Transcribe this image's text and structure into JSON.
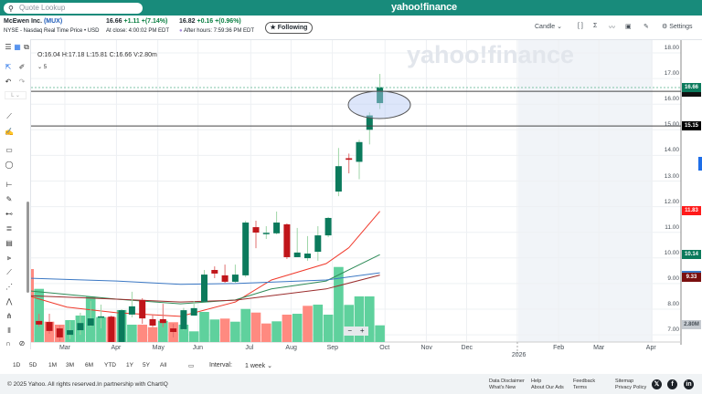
{
  "header": {
    "search_placeholder": "Quote Lookup",
    "logo": "yahoo!finance"
  },
  "quote": {
    "name": "McEwen Inc.",
    "symbol": "(MUX)",
    "exchange": "NYSE - Nasdaq Real Time Price • USD",
    "price": "16.66",
    "change": "+1.11",
    "change_pct": "+(7.14%)",
    "close_label": "At close: 4:00:02 PM EDT",
    "ah_price": "16.82",
    "ah_change": "+0.16",
    "ah_change_pct": "+(0.96%)",
    "ah_label": "After hours: 7:59:36 PM EDT",
    "following": "★ Following"
  },
  "toolbar": {
    "chart_type": "Candle ⌄",
    "settings": "Settings"
  },
  "ohlc": "O:16.04  H:17.18  L:15.81  C:16.66  V:2.80m",
  "study_count": "⌄ 5",
  "watermark": "yahoo!finance",
  "colors": {
    "up": "#0b7a5c",
    "down": "#c0151a",
    "vol_up": "#5fd19d",
    "vol_down": "#ff8a80",
    "header": "#188b7b"
  },
  "chart_data": {
    "type": "candlestick",
    "ylim": [
      7,
      18
    ],
    "yticks": [
      "18.00",
      "17.00",
      "16.00",
      "15.00",
      "14.00",
      "13.00",
      "12.00",
      "11.00",
      "10.00",
      "9.00",
      "8.00",
      "7.00"
    ],
    "xlabels": [
      {
        "t": "Mar",
        "i": 2.5
      },
      {
        "t": "Apr",
        "i": 7.5
      },
      {
        "t": "May",
        "i": 11.5
      },
      {
        "t": "Jun",
        "i": 15.4
      },
      {
        "t": "Jul",
        "i": 20.5
      },
      {
        "t": "Aug",
        "i": 24.4
      },
      {
        "t": "Sep",
        "i": 28.4
      },
      {
        "t": "Oct",
        "i": 33.5
      },
      {
        "t": "Nov",
        "i": 37.5
      },
      {
        "t": "Dec",
        "i": 41.4
      },
      {
        "t": "2026",
        "i": 46.3
      },
      {
        "t": "Feb",
        "i": 50.3
      },
      {
        "t": "Mar",
        "i": 54.2
      },
      {
        "t": "Apr",
        "i": 59.3
      }
    ],
    "candles": [
      [
        7.54,
        7.82,
        7.32,
        7.4
      ],
      [
        7.5,
        7.82,
        7.04,
        7.15
      ],
      [
        7.25,
        7.36,
        6.75,
        6.9
      ],
      [
        7.0,
        7.54,
        6.83,
        7.18
      ],
      [
        7.18,
        7.86,
        7.0,
        7.46
      ],
      [
        7.36,
        8.32,
        7.32,
        7.64
      ],
      [
        7.71,
        8.18,
        7.25,
        7.72
      ],
      [
        7.71,
        7.75,
        6.72,
        6.72
      ],
      [
        6.72,
        8.0,
        6.72,
        7.96
      ],
      [
        7.79,
        8.68,
        7.68,
        8.11
      ],
      [
        8.36,
        8.43,
        7.43,
        7.64
      ],
      [
        7.61,
        7.79,
        7.3,
        7.36
      ],
      [
        7.61,
        8.21,
        7.3,
        7.46
      ],
      [
        7.25,
        7.43,
        6.9,
        7.11
      ],
      [
        7.22,
        8.05,
        7.18,
        7.96
      ],
      [
        7.75,
        8.32,
        7.75,
        8.04
      ],
      [
        8.29,
        9.53,
        8.29,
        9.35
      ],
      [
        9.53,
        9.67,
        9.21,
        9.39
      ],
      [
        9.32,
        9.74,
        9.03,
        9.07
      ],
      [
        9.07,
        9.74,
        9.03,
        9.35
      ],
      [
        9.32,
        11.45,
        9.25,
        11.38
      ],
      [
        11.2,
        11.45,
        10.38,
        10.99
      ],
      [
        10.98,
        11.24,
        10.74,
        10.98
      ],
      [
        10.96,
        11.81,
        10.92,
        11.38
      ],
      [
        11.31,
        11.35,
        9.96,
        10.03
      ],
      [
        10.03,
        11.17,
        10.03,
        10.21
      ],
      [
        9.99,
        10.85,
        9.89,
        10.17
      ],
      [
        10.24,
        11.24,
        9.89,
        10.88
      ],
      [
        10.88,
        11.6,
        10.81,
        11.56
      ],
      [
        12.59,
        14.29,
        12.41,
        13.58
      ],
      [
        13.89,
        14.07,
        13.3,
        13.83
      ],
      [
        13.75,
        14.61,
        13.07,
        14.52
      ],
      [
        15.0,
        15.68,
        14.43,
        15.56
      ],
      [
        16.04,
        17.18,
        15.81,
        16.66
      ]
    ],
    "volume_m": [
      8.92,
      3.41,
      2.91,
      3.67,
      4.44,
      7.6,
      4.18,
      4.18,
      5.36,
      2.91,
      2.91,
      2.49,
      3.56,
      3.32,
      2.91,
      1.79,
      5.05,
      3.78,
      3.93,
      3.41,
      5.55,
      4.94,
      3.11,
      3.47,
      4.59,
      4.74,
      6.07,
      6.27,
      4.59,
      12.59,
      6.23,
      7.65,
      7.65,
      2.8
    ],
    "moving_averages": [
      {
        "color": "#f0392b",
        "last": "11.83",
        "points": [
          [
            -1.1,
            8.53
          ],
          [
            2.7,
            8.08
          ],
          [
            7.5,
            7.86
          ],
          [
            13.7,
            7.72
          ],
          [
            19,
            8.28
          ],
          [
            22.5,
            9.14
          ],
          [
            27.8,
            9.78
          ],
          [
            30,
            10.4
          ],
          [
            33,
            11.82
          ]
        ]
      },
      {
        "color": "#2e8b57",
        "last": "10.14",
        "points": [
          [
            -1.1,
            8.72
          ],
          [
            7.5,
            8.39
          ],
          [
            13.7,
            8.21
          ],
          [
            19,
            8.36
          ],
          [
            22.5,
            8.79
          ],
          [
            27.8,
            9.1
          ],
          [
            33,
            10.13
          ]
        ]
      },
      {
        "color": "#3b78c4",
        "last": "",
        "points": [
          [
            -1.1,
            9.21
          ],
          [
            7.5,
            9.1
          ],
          [
            13.7,
            8.97
          ],
          [
            19,
            9.0
          ],
          [
            27.8,
            9.14
          ],
          [
            33,
            9.42
          ]
        ]
      },
      {
        "color": "#9b2d2d",
        "last": "9.33",
        "points": [
          [
            -1.1,
            8.53
          ],
          [
            7.5,
            8.39
          ],
          [
            13.7,
            8.28
          ],
          [
            19,
            8.35
          ],
          [
            27.8,
            8.79
          ],
          [
            33,
            9.33
          ]
        ]
      }
    ],
    "price_labels": [
      {
        "t": "16.66",
        "v": 16.66,
        "c": "#0b7a5c"
      },
      {
        "t": "15.15",
        "v": 15.15,
        "c": "#000000"
      },
      {
        "t": "11.83",
        "v": 11.83,
        "c": "#ff1a1a"
      },
      {
        "t": "10.14",
        "v": 10.14,
        "c": "#0b7a5c"
      },
      {
        "t": "9.33",
        "v": 9.25,
        "c": "#7a0f0f"
      }
    ],
    "horizontal_lines": [
      16.5,
      15.15
    ],
    "volume_label": "2.80M"
  },
  "ranges": [
    "1D",
    "5D",
    "1M",
    "3M",
    "6M",
    "YTD",
    "1Y",
    "5Y",
    "All"
  ],
  "interval_label": "Interval:",
  "interval_value": "1 week ⌄",
  "zoom": {
    "minus": "−",
    "plus": "+"
  },
  "footer": {
    "copyright": "© 2025 Yahoo. All rights reserved.In partnership with ChartIQ",
    "links": [
      [
        "Data Disclaimer",
        "What's New"
      ],
      [
        "Help",
        "About Our Ads"
      ],
      [
        "Feedback",
        "Terms"
      ],
      [
        "Sitemap",
        "Privacy Policy"
      ]
    ]
  }
}
